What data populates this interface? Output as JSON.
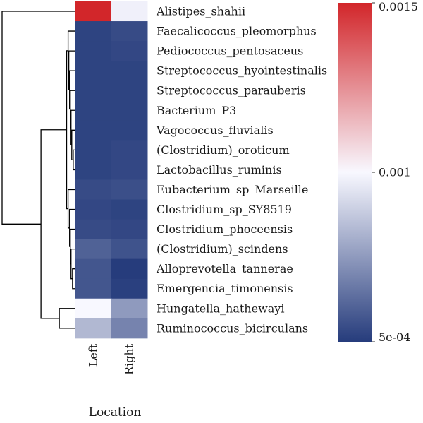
{
  "chart_data": {
    "type": "heatmap",
    "title": "",
    "xlabel": "Location",
    "ylabel": "",
    "columns": [
      "Left",
      "Right"
    ],
    "rows": [
      "Alistipes_shahii",
      "Faecalicoccus_pleomorphus",
      "Pediococcus_pentosaceus",
      "Streptococcus_hyointestinalis",
      "Streptococcus_parauberis",
      "Bacterium_P3",
      "Vagococcus_fluvialis",
      "(Clostridium)_oroticum",
      "Lactobacillus_ruminis",
      "Eubacterium_sp_Marseille",
      "Clostridium_sp_SY8519",
      "Clostridium_phoceensis",
      "(Clostridium)_scindens",
      "Alloprevotella_tannerae",
      "Emergencia_timonensis",
      "Hungatella_hathewayi",
      "Ruminococcus_bicirculans"
    ],
    "values": [
      [
        0.0015,
        0.00098
      ],
      [
        0.00052,
        0.00054
      ],
      [
        0.00052,
        0.00053
      ],
      [
        0.00052,
        0.00052
      ],
      [
        0.00052,
        0.00052
      ],
      [
        0.00052,
        0.00052
      ],
      [
        0.00052,
        0.00052
      ],
      [
        0.00052,
        0.00053
      ],
      [
        0.00052,
        0.00053
      ],
      [
        0.00054,
        0.00055
      ],
      [
        0.00053,
        0.00052
      ],
      [
        0.00054,
        0.00053
      ],
      [
        0.0006,
        0.00056
      ],
      [
        0.00057,
        0.0005
      ],
      [
        0.00057,
        0.00051
      ],
      [
        0.001,
        0.00075
      ],
      [
        0.00083,
        0.00069
      ]
    ],
    "colorbar": {
      "min": 0.0005,
      "mid": 0.001,
      "max": 0.0015,
      "tick_labels": [
        "0.0015",
        "0.001",
        "5e-04"
      ],
      "tick_values": [
        0.0015,
        0.001,
        0.0005
      ],
      "colors": {
        "low": "#263c7c",
        "mid": "#f8f8ff",
        "high": "#d2262a"
      }
    },
    "row_dendrogram": [
      [
        13,
        14
      ],
      [
        12,
        17
      ],
      [
        11,
        18
      ],
      [
        10,
        19
      ],
      [
        9,
        20
      ],
      [
        7,
        8
      ],
      [
        6,
        22
      ],
      [
        5,
        23
      ],
      [
        4,
        24
      ],
      [
        3,
        25
      ],
      [
        2,
        26
      ],
      [
        1,
        27
      ],
      [
        21,
        28
      ],
      [
        15,
        16
      ],
      [
        29,
        30
      ],
      [
        0,
        31
      ]
    ],
    "row_dendrogram_heights": [
      0.04,
      0.06,
      0.07,
      0.08,
      0.1,
      0.03,
      0.05,
      0.06,
      0.07,
      0.08,
      0.09,
      0.1,
      0.12,
      0.22,
      0.47,
      1.0
    ]
  }
}
